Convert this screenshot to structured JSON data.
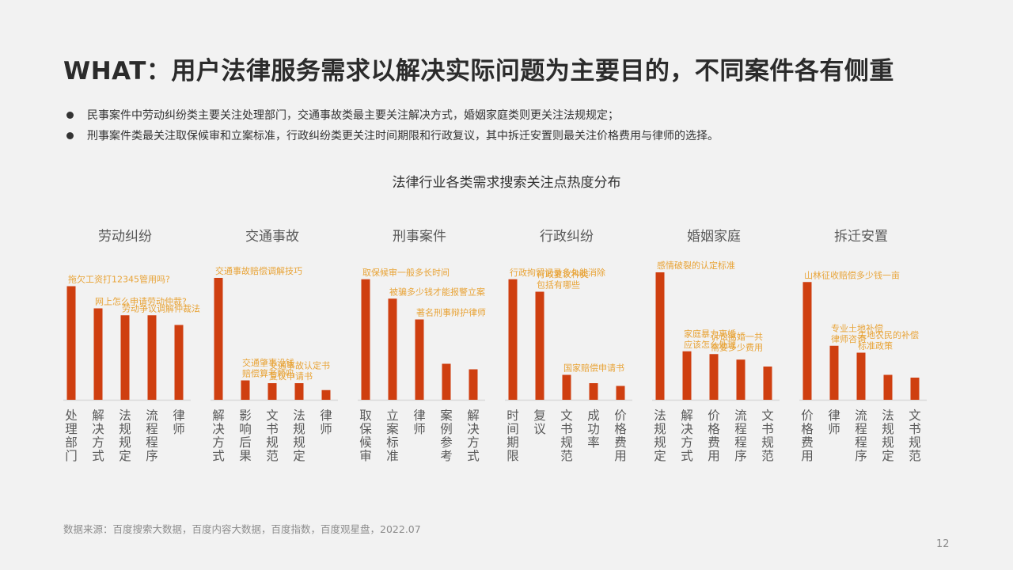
{
  "title": "WHAT：用户法律服务需求以解决实际问题为主要目的，不同案件各有侧重",
  "bullets": [
    "民事案件中劳动纠纷类主要关注处理部门，交通事故类最主要关注解决方式，婚姻家庭类则更关注法规规定；",
    "刑事案件类最关注取保候审和立案标准，行政纠纷类更关注时间期限和行政复议，其中拆迁安置则最关注价格费用与律师的选择。"
  ],
  "chart_title": "法律行业各类需求搜索关注点热度分布",
  "source": "数据来源：百度搜索大数据，百度内容大数据，百度指数，百度观星盘，2022.07",
  "page_number": "12",
  "colors": {
    "bar": "#cf3f10",
    "annotation": "#e8a336",
    "group_title": "#595959",
    "category": "#595959",
    "axis": "#d9d9d9"
  },
  "chart_data": {
    "type": "bar",
    "title": "法律行业各类需求搜索关注点热度分布",
    "ylim": [
      0,
      100
    ],
    "grid": false,
    "legend": "none",
    "groups": [
      {
        "name": "劳动纠纷",
        "categories": [
          "处理部门",
          "解决方式",
          "法规规定",
          "流程程序",
          "律师"
        ],
        "values": [
          82,
          66,
          61,
          61,
          54
        ],
        "annotations": [
          {
            "text": [
              "拖欠工资打12345管用吗?"
            ],
            "bar": 0
          },
          {
            "text": [
              "网上怎么申请劳动仲裁?"
            ],
            "bar": 1
          },
          {
            "text": [
              "劳动争议调解仲裁法"
            ],
            "bar": 2
          }
        ]
      },
      {
        "name": "交通事故",
        "categories": [
          "解决方式",
          "影响后果",
          "文书规范",
          "法规规定",
          "律师"
        ],
        "values": [
          88,
          14,
          12,
          12,
          7
        ],
        "annotations": [
          {
            "text": [
              "交通事故赔偿调解技巧"
            ],
            "bar": 0
          },
          {
            "text": [
              "交通肇事没钱",
              "赔偿算老赖吗"
            ],
            "bar": 1
          },
          {
            "text": [
              "交通事故认定书",
              "复议申请书"
            ],
            "bar": 2
          }
        ]
      },
      {
        "name": "刑事案件",
        "categories": [
          "取保候审",
          "立案标准",
          "律师",
          "案例参考",
          "解决方式"
        ],
        "values": [
          87,
          73,
          58,
          26,
          22
        ],
        "annotations": [
          {
            "text": [
              "取保候审一般多长时间"
            ],
            "bar": 0
          },
          {
            "text": [
              "被骗多少钱才能报警立案"
            ],
            "bar": 1
          },
          {
            "text": [
              "著名刑事辩护律师"
            ],
            "bar": 2
          }
        ]
      },
      {
        "name": "行政纠纷",
        "categories": [
          "时间期限",
          "复议",
          "文书规范",
          "成功率",
          "价格费用"
        ],
        "values": [
          87,
          78,
          18,
          12,
          10
        ],
        "annotations": [
          {
            "text": [
              "行政拘留记录多久能消除"
            ],
            "bar": 0
          },
          {
            "text": [
              "行政复议种类",
              "包括有哪些"
            ],
            "bar": 1
          },
          {
            "text": [
              "国家赔偿申请书"
            ],
            "bar": 2
          }
        ]
      },
      {
        "name": "婚姻家庭",
        "categories": [
          "法规规定",
          "解决方式",
          "价格费用",
          "流程程序",
          "文书规范"
        ],
        "values": [
          92,
          35,
          33,
          29,
          24
        ],
        "annotations": [
          {
            "text": [
              "感情破裂的认定标准"
            ],
            "bar": 0
          },
          {
            "text": [
              "家庭暴力离婚",
              "应该怎么处理"
            ],
            "bar": 1
          },
          {
            "text": [
              "诉讼离婚一共",
              "需要多少费用"
            ],
            "bar": 2
          }
        ]
      },
      {
        "name": "拆迁安置",
        "categories": [
          "价格费用",
          "律师",
          "流程程序",
          "法规规定",
          "文书规范"
        ],
        "values": [
          85,
          39,
          34,
          18,
          16
        ],
        "annotations": [
          {
            "text": [
              "山林征收赔偿多少钱一亩"
            ],
            "bar": 0
          },
          {
            "text": [
              "专业土地补偿",
              "律师咨询"
            ],
            "bar": 1
          },
          {
            "text": [
              "失地农民的补偿",
              "标准政策"
            ],
            "bar": 2
          }
        ]
      }
    ]
  }
}
